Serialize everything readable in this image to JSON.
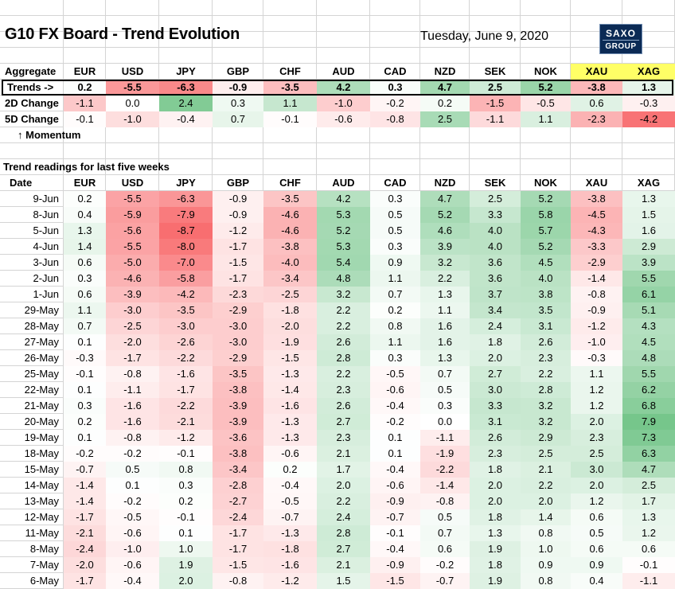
{
  "title": "G10 FX Board - Trend Evolution",
  "date": "Tuesday, June 9, 2020",
  "logo": {
    "line1": "SAXO",
    "line2": "GROUP"
  },
  "labels": {
    "aggregate": "Aggregate",
    "trends": "Trends ->",
    "change2d": "2D Change",
    "change5d": "5D Change",
    "momentum": "↑ Momentum",
    "section": "Trend readings for last five weeks",
    "date_col": "Date"
  },
  "columns": [
    "EUR",
    "USD",
    "JPY",
    "GBP",
    "CHF",
    "AUD",
    "CAD",
    "NZD",
    "SEK",
    "NOK",
    "XAU",
    "XAG"
  ],
  "colors": {
    "positive": "#63be7b",
    "negative": "#f8696b",
    "highlight": "#ffff66"
  },
  "summary": {
    "trends": [
      "0.2",
      "-5.5",
      "-6.3",
      "-0.9",
      "-3.5",
      "4.2",
      "0.3",
      "4.7",
      "2.5",
      "5.2",
      "-3.8",
      "1.3"
    ],
    "change2d": [
      "-1.1",
      "0.0",
      "2.4",
      "0.3",
      "1.1",
      "-1.0",
      "-0.2",
      "0.2",
      "-1.5",
      "-0.5",
      "0.6",
      "-0.3"
    ],
    "change5d": [
      "-0.1",
      "-1.0",
      "-0.4",
      "0.7",
      "-0.1",
      "-0.6",
      "-0.8",
      "2.5",
      "-1.1",
      "1.1",
      "-2.3",
      "-4.2"
    ]
  },
  "rows": [
    {
      "date": "9-Jun",
      "values": [
        "0.2",
        "-5.5",
        "-6.3",
        "-0.9",
        "-3.5",
        "4.2",
        "0.3",
        "4.7",
        "2.5",
        "5.2",
        "-3.8",
        "1.3"
      ]
    },
    {
      "date": "8-Jun",
      "values": [
        "0.4",
        "-5.9",
        "-7.9",
        "-0.9",
        "-4.6",
        "5.3",
        "0.5",
        "5.2",
        "3.3",
        "5.8",
        "-4.5",
        "1.5"
      ]
    },
    {
      "date": "5-Jun",
      "values": [
        "1.3",
        "-5.6",
        "-8.7",
        "-1.2",
        "-4.6",
        "5.2",
        "0.5",
        "4.6",
        "4.0",
        "5.7",
        "-4.3",
        "1.6"
      ]
    },
    {
      "date": "4-Jun",
      "values": [
        "1.4",
        "-5.5",
        "-8.0",
        "-1.7",
        "-3.8",
        "5.3",
        "0.3",
        "3.9",
        "4.0",
        "5.2",
        "-3.3",
        "2.9"
      ]
    },
    {
      "date": "3-Jun",
      "values": [
        "0.6",
        "-5.0",
        "-7.0",
        "-1.5",
        "-4.0",
        "5.4",
        "0.9",
        "3.2",
        "3.6",
        "4.5",
        "-2.9",
        "3.9"
      ]
    },
    {
      "date": "2-Jun",
      "values": [
        "0.3",
        "-4.6",
        "-5.8",
        "-1.7",
        "-3.4",
        "4.8",
        "1.1",
        "2.2",
        "3.6",
        "4.0",
        "-1.4",
        "5.5"
      ]
    },
    {
      "date": "1-Jun",
      "values": [
        "0.6",
        "-3.9",
        "-4.2",
        "-2.3",
        "-2.5",
        "3.2",
        "0.7",
        "1.3",
        "3.7",
        "3.8",
        "-0.8",
        "6.1"
      ]
    },
    {
      "date": "29-May",
      "values": [
        "1.1",
        "-3.0",
        "-3.5",
        "-2.9",
        "-1.8",
        "2.2",
        "0.2",
        "1.1",
        "3.4",
        "3.5",
        "-0.9",
        "5.1"
      ]
    },
    {
      "date": "28-May",
      "values": [
        "0.7",
        "-2.5",
        "-3.0",
        "-3.0",
        "-2.0",
        "2.2",
        "0.8",
        "1.6",
        "2.4",
        "3.1",
        "-1.2",
        "4.3"
      ]
    },
    {
      "date": "27-May",
      "values": [
        "0.1",
        "-2.0",
        "-2.6",
        "-3.0",
        "-1.9",
        "2.6",
        "1.1",
        "1.6",
        "1.8",
        "2.6",
        "-1.0",
        "4.5"
      ]
    },
    {
      "date": "26-May",
      "values": [
        "-0.3",
        "-1.7",
        "-2.2",
        "-2.9",
        "-1.5",
        "2.8",
        "0.3",
        "1.3",
        "2.0",
        "2.3",
        "-0.3",
        "4.8"
      ]
    },
    {
      "date": "25-May",
      "values": [
        "-0.1",
        "-0.8",
        "-1.6",
        "-3.5",
        "-1.3",
        "2.2",
        "-0.5",
        "0.7",
        "2.7",
        "2.2",
        "1.1",
        "5.5"
      ]
    },
    {
      "date": "22-May",
      "values": [
        "0.1",
        "-1.1",
        "-1.7",
        "-3.8",
        "-1.4",
        "2.3",
        "-0.6",
        "0.5",
        "3.0",
        "2.8",
        "1.2",
        "6.2"
      ]
    },
    {
      "date": "21-May",
      "values": [
        "0.3",
        "-1.6",
        "-2.2",
        "-3.9",
        "-1.6",
        "2.6",
        "-0.4",
        "0.3",
        "3.3",
        "3.2",
        "1.2",
        "6.8"
      ]
    },
    {
      "date": "20-May",
      "values": [
        "0.2",
        "-1.6",
        "-2.1",
        "-3.9",
        "-1.3",
        "2.7",
        "-0.2",
        "0.0",
        "3.1",
        "3.2",
        "2.0",
        "7.9"
      ]
    },
    {
      "date": "19-May",
      "values": [
        "0.1",
        "-0.8",
        "-1.2",
        "-3.6",
        "-1.3",
        "2.3",
        "0.1",
        "-1.1",
        "2.6",
        "2.9",
        "2.3",
        "7.3"
      ]
    },
    {
      "date": "18-May",
      "values": [
        "-0.2",
        "-0.2",
        "-0.1",
        "-3.8",
        "-0.6",
        "2.1",
        "0.1",
        "-1.9",
        "2.3",
        "2.5",
        "2.5",
        "6.3"
      ]
    },
    {
      "date": "15-May",
      "values": [
        "-0.7",
        "0.5",
        "0.8",
        "-3.4",
        "0.2",
        "1.7",
        "-0.4",
        "-2.2",
        "1.8",
        "2.1",
        "3.0",
        "4.7"
      ]
    },
    {
      "date": "14-May",
      "values": [
        "-1.4",
        "0.1",
        "0.3",
        "-2.8",
        "-0.4",
        "2.0",
        "-0.6",
        "-1.4",
        "2.0",
        "2.2",
        "2.0",
        "2.5"
      ]
    },
    {
      "date": "13-May",
      "values": [
        "-1.4",
        "-0.2",
        "0.2",
        "-2.7",
        "-0.5",
        "2.2",
        "-0.9",
        "-0.8",
        "2.0",
        "2.0",
        "1.2",
        "1.7"
      ]
    },
    {
      "date": "12-May",
      "values": [
        "-1.7",
        "-0.5",
        "-0.1",
        "-2.4",
        "-0.7",
        "2.4",
        "-0.7",
        "0.5",
        "1.8",
        "1.4",
        "0.6",
        "1.3"
      ]
    },
    {
      "date": "11-May",
      "values": [
        "-2.1",
        "-0.6",
        "0.1",
        "-1.7",
        "-1.3",
        "2.8",
        "-0.1",
        "0.7",
        "1.3",
        "0.8",
        "0.5",
        "1.2"
      ]
    },
    {
      "date": "8-May",
      "values": [
        "-2.4",
        "-1.0",
        "1.0",
        "-1.7",
        "-1.8",
        "2.7",
        "-0.4",
        "0.6",
        "1.9",
        "1.0",
        "0.6",
        "0.6"
      ]
    },
    {
      "date": "7-May",
      "values": [
        "-2.0",
        "-0.6",
        "1.9",
        "-1.5",
        "-1.6",
        "2.1",
        "-0.9",
        "-0.2",
        "1.8",
        "0.9",
        "0.9",
        "-0.1"
      ]
    },
    {
      "date": "6-May",
      "values": [
        "-1.7",
        "-0.4",
        "2.0",
        "-0.8",
        "-1.2",
        "1.5",
        "-1.5",
        "-0.7",
        "1.9",
        "0.8",
        "0.4",
        "-1.1"
      ]
    }
  ]
}
